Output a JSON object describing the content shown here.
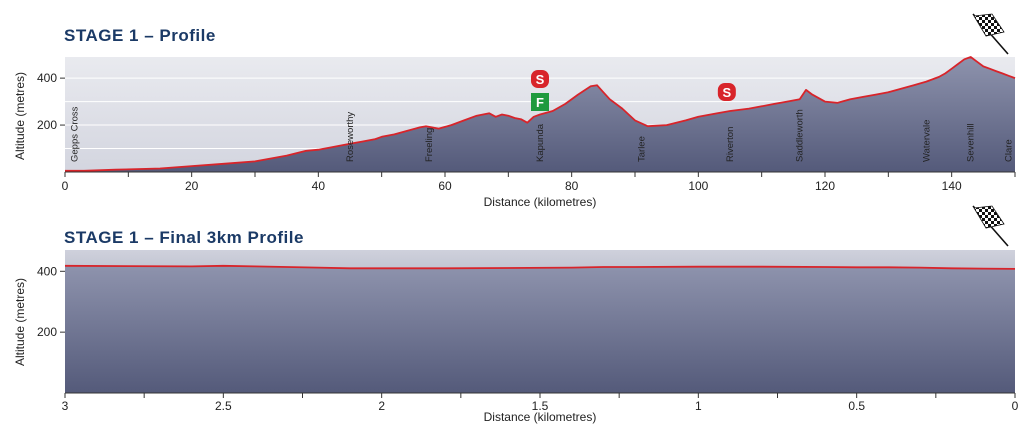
{
  "charts": [
    {
      "title": "STAGE 1 – Profile",
      "xlabel": "Distance (kilometres)",
      "ylabel": "Altitude (metres)",
      "xticks": [
        "0",
        "20",
        "40",
        "60",
        "80",
        "100",
        "120",
        "140"
      ],
      "yticks": [
        "200",
        "400"
      ],
      "places": [
        {
          "name": "Gepps Cross",
          "km": 1.5
        },
        {
          "name": "Roseworthy",
          "km": 45
        },
        {
          "name": "Freeling",
          "km": 57.5
        },
        {
          "name": "Kapunda",
          "km": 75
        },
        {
          "name": "Tarlee",
          "km": 91
        },
        {
          "name": "Riverton",
          "km": 105
        },
        {
          "name": "Saddleworth",
          "km": 116
        },
        {
          "name": "Watervale",
          "km": 136
        },
        {
          "name": "Sevenhill",
          "km": 143
        },
        {
          "name": "Clare",
          "km": 149
        }
      ],
      "markers": [
        {
          "label": "S",
          "km": 75,
          "kind": "sprint-top"
        },
        {
          "label": "F",
          "km": 75,
          "kind": "feed"
        },
        {
          "label": "S",
          "km": 104.5,
          "kind": "sprint"
        }
      ]
    },
    {
      "title": "STAGE 1 – Final 3km Profile",
      "xlabel": "Distance (kilometres)",
      "ylabel": "Altitude (metres)",
      "xticks": [
        "3",
        "2.5",
        "2",
        "1.5",
        "1",
        "0.5",
        "0"
      ],
      "yticks": [
        "200",
        "400"
      ]
    }
  ],
  "chart_data": [
    {
      "type": "area",
      "title": "STAGE 1 – Profile",
      "xlabel": "Distance (kilometres)",
      "ylabel": "Altitude (metres)",
      "xlim": [
        0,
        150
      ],
      "ylim": [
        0,
        490
      ],
      "x": [
        0,
        3,
        8,
        15,
        20,
        25,
        30,
        35,
        38,
        40,
        42,
        45,
        47,
        49,
        50,
        52,
        54,
        56,
        57,
        59,
        61,
        63,
        65,
        67,
        68,
        69,
        70,
        71,
        72,
        73,
        74,
        75,
        77,
        79,
        81,
        83,
        84,
        85,
        86,
        88,
        90,
        92,
        95,
        98,
        100,
        103,
        105,
        108,
        110,
        112,
        114,
        116,
        117,
        118,
        120,
        122,
        124,
        126,
        128,
        130,
        132,
        134,
        136,
        138,
        139,
        140,
        141,
        142,
        143,
        144,
        145,
        146,
        147,
        148,
        149,
        150
      ],
      "y": [
        5,
        5,
        10,
        15,
        25,
        35,
        45,
        70,
        90,
        95,
        105,
        120,
        130,
        140,
        150,
        160,
        175,
        190,
        195,
        185,
        200,
        220,
        240,
        250,
        235,
        245,
        240,
        230,
        225,
        210,
        235,
        245,
        260,
        290,
        330,
        365,
        370,
        340,
        310,
        270,
        220,
        195,
        200,
        220,
        235,
        250,
        260,
        270,
        280,
        290,
        300,
        310,
        350,
        330,
        300,
        295,
        310,
        320,
        330,
        340,
        355,
        370,
        385,
        405,
        420,
        440,
        460,
        480,
        490,
        470,
        450,
        440,
        430,
        420,
        410,
        400
      ]
    },
    {
      "type": "area",
      "title": "STAGE 1 – Final 3km Profile",
      "xlabel": "Distance (kilometres)",
      "ylabel": "Altitude (metres)",
      "xlim": [
        3,
        0
      ],
      "ylim": [
        0,
        470
      ],
      "x": [
        3,
        2.8,
        2.6,
        2.5,
        2.4,
        2.2,
        2.1,
        2.0,
        1.8,
        1.6,
        1.4,
        1.3,
        1.2,
        1.0,
        0.8,
        0.6,
        0.5,
        0.4,
        0.3,
        0.2,
        0.1,
        0
      ],
      "y": [
        418,
        417,
        416,
        418,
        416,
        412,
        410,
        410,
        410,
        411,
        412,
        414,
        414,
        415,
        415,
        414,
        413,
        413,
        412,
        410,
        409,
        408
      ]
    }
  ]
}
